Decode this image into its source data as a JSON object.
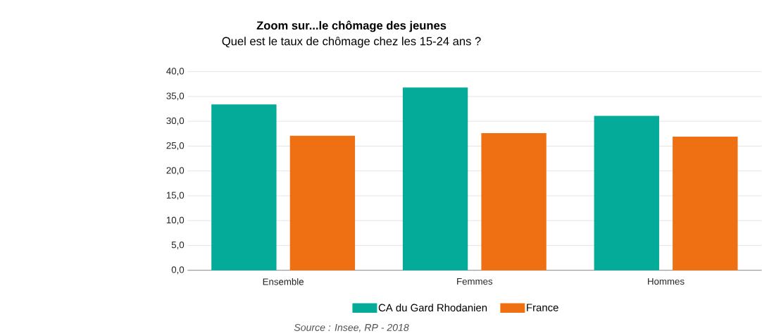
{
  "chart_data": {
    "type": "bar",
    "title": "Zoom sur...le chômage des jeunes",
    "subtitle": "Quel est le taux de chômage chez les 15-24 ans ?",
    "categories": [
      "Ensemble",
      "Femmes",
      "Hommes"
    ],
    "series": [
      {
        "name": "CA du Gard Rhodanien",
        "color": "#05ab99",
        "values": [
          33.4,
          36.8,
          31.1
        ]
      },
      {
        "name": "France",
        "color": "#ee7012",
        "values": [
          27.1,
          27.6,
          26.9
        ]
      }
    ],
    "ylim": [
      0,
      40
    ],
    "yticks": [
      {
        "value": 0,
        "label": "0,0"
      },
      {
        "value": 5,
        "label": "5,0"
      },
      {
        "value": 10,
        "label": "10,0"
      },
      {
        "value": 15,
        "label": "15,0"
      },
      {
        "value": 20,
        "label": "20,0"
      },
      {
        "value": 25,
        "label": "25,0"
      },
      {
        "value": 30,
        "label": "30,0"
      },
      {
        "value": 35,
        "label": "35,0"
      },
      {
        "value": 40,
        "label": "40,0"
      }
    ],
    "grid": "y",
    "legend": "bottom",
    "annotations": [
      "Source : Insee, RP - 2018"
    ]
  }
}
